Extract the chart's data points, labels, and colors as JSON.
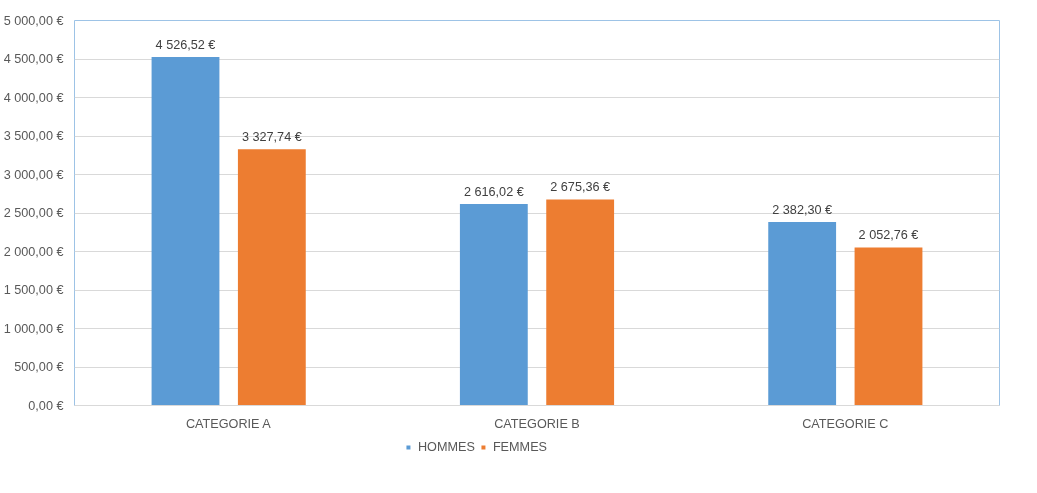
{
  "chart_data": {
    "type": "bar",
    "categories": [
      "CATEGORIE A",
      "CATEGORIE B",
      "CATEGORIE C"
    ],
    "series": [
      {
        "name": "HOMMES",
        "color": "#5b9bd5",
        "values": [
          4526.52,
          2616.02,
          2382.3
        ],
        "value_labels": [
          "4 526,52 €",
          "2 616,02 €",
          "2 382,30 €"
        ]
      },
      {
        "name": "FEMMES",
        "color": "#ed7d31",
        "values": [
          3327.74,
          2675.36,
          2052.76
        ],
        "value_labels": [
          "3 327,74 €",
          "2 675,36 €",
          "2 052,76 €"
        ]
      }
    ],
    "ylim": [
      0,
      5000
    ],
    "yticks": [
      {
        "value": 0,
        "label": "0,00 €"
      },
      {
        "value": 500,
        "label": "500,00 €"
      },
      {
        "value": 1000,
        "label": "1 000,00 €"
      },
      {
        "value": 1500,
        "label": "1 500,00 €"
      },
      {
        "value": 2000,
        "label": "2 000,00 €"
      },
      {
        "value": 2500,
        "label": "2 500,00 €"
      },
      {
        "value": 3000,
        "label": "3 000,00 €"
      },
      {
        "value": 3500,
        "label": "3 500,00 €"
      },
      {
        "value": 4000,
        "label": "4 000,00 €"
      },
      {
        "value": 4500,
        "label": "4 500,00 €"
      },
      {
        "value": 5000,
        "label": "5 000,00 €"
      }
    ],
    "grid": "y",
    "legend": "bottom"
  }
}
